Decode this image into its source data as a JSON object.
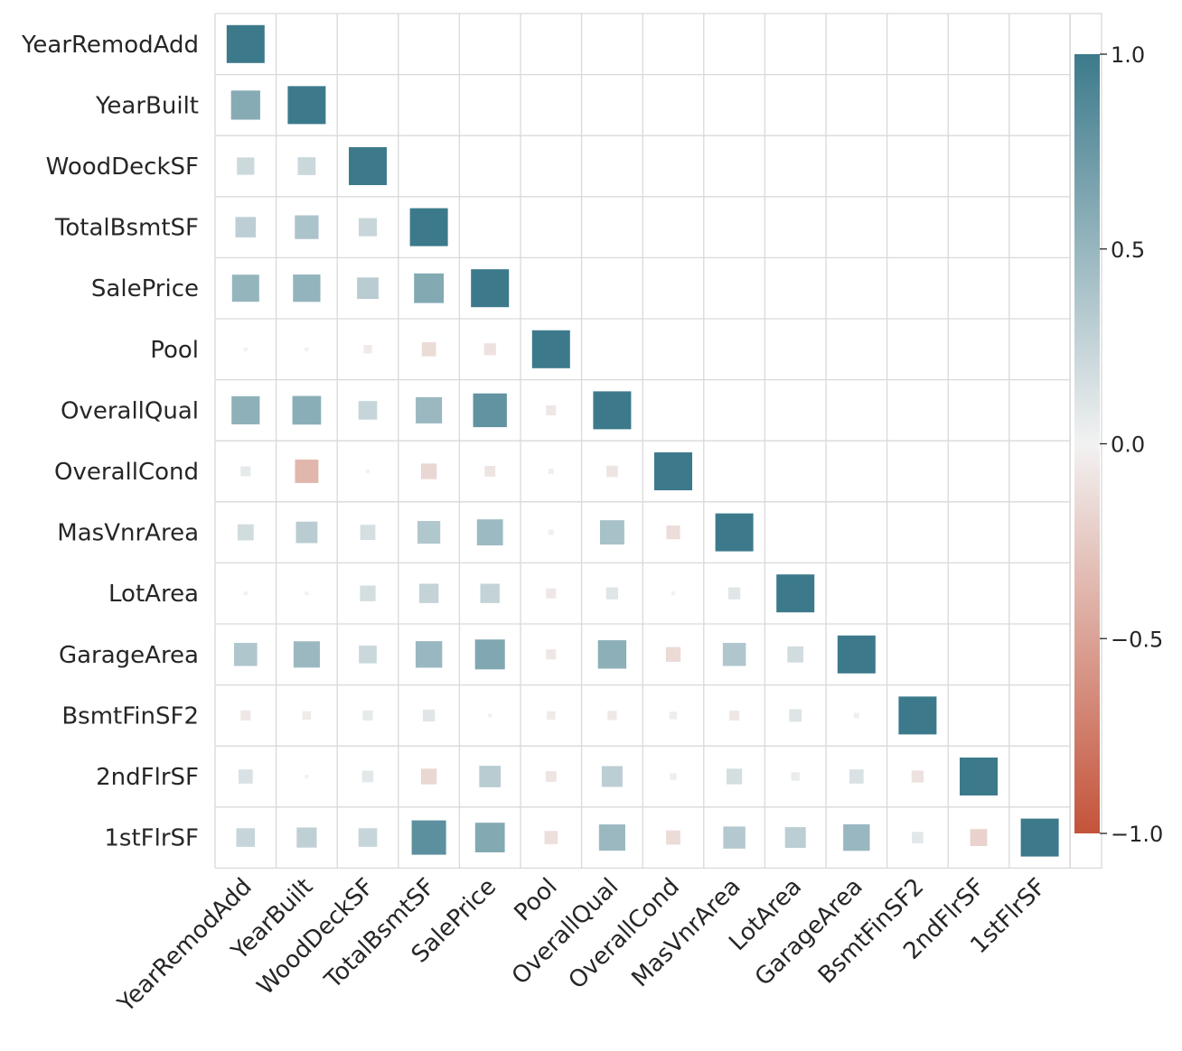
{
  "chart_data": {
    "type": "heatmap",
    "style": "lower-triangle correlation matrix, square markers sized and colored by correlation value",
    "title": "",
    "xlabel": "",
    "ylabel": "",
    "labels": [
      "YearRemodAdd",
      "YearBuilt",
      "WoodDeckSF",
      "TotalBsmtSF",
      "SalePrice",
      "Pool",
      "OverallQual",
      "OverallCond",
      "MasVnrArea",
      "LotArea",
      "GarageArea",
      "BsmtFinSF2",
      "2ndFlrSF",
      "1stFlrSF"
    ],
    "matrix": [
      [
        1.0
      ],
      [
        0.59,
        1.0
      ],
      [
        0.21,
        0.22,
        1.0
      ],
      [
        0.29,
        0.39,
        0.23,
        1.0
      ],
      [
        0.51,
        0.52,
        0.32,
        0.61,
        1.0
      ],
      [
        0.01,
        0.01,
        -0.05,
        -0.14,
        -0.1,
        1.0
      ],
      [
        0.55,
        0.57,
        0.24,
        0.48,
        0.79,
        -0.07,
        1.0
      ],
      [
        0.07,
        -0.38,
        -0.003,
        -0.17,
        -0.08,
        -0.02,
        -0.09,
        1.0
      ],
      [
        0.18,
        0.32,
        0.16,
        0.36,
        0.47,
        -0.02,
        0.41,
        -0.13,
        1.0
      ],
      [
        0.01,
        0.01,
        0.17,
        0.26,
        0.26,
        -0.07,
        0.1,
        -0.01,
        0.1,
        1.0
      ],
      [
        0.37,
        0.48,
        0.22,
        0.49,
        0.62,
        -0.07,
        0.56,
        -0.15,
        0.37,
        0.18,
        1.0
      ],
      [
        -0.07,
        -0.05,
        0.07,
        0.1,
        -0.01,
        -0.05,
        -0.06,
        0.04,
        -0.07,
        0.11,
        -0.02,
        1.0
      ],
      [
        0.14,
        0.01,
        0.09,
        -0.17,
        0.32,
        -0.08,
        0.3,
        0.03,
        0.17,
        0.05,
        0.14,
        -0.1,
        1.0
      ],
      [
        0.24,
        0.28,
        0.24,
        0.82,
        0.61,
        -0.12,
        0.48,
        -0.14,
        0.34,
        0.3,
        0.49,
        0.09,
        -0.2,
        1.0
      ]
    ],
    "colorbar": {
      "vmin": -1.0,
      "vmax": 1.0,
      "tick_values": [
        1.0,
        0.5,
        0.0,
        -0.5,
        -1.0
      ],
      "tick_labels": [
        "1.0",
        "0.5",
        "0.0",
        "−0.5",
        "−1.0"
      ],
      "colors": {
        "negative": "#c4533a",
        "neutral": "#f2f2f2",
        "positive": "#3c7a8b"
      }
    },
    "grid": true,
    "legend": "colorbar on right"
  }
}
